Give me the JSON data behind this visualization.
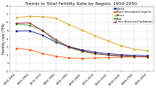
{
  "title": "Trends in Total Fertility Rate by Region, 1950-2050.",
  "ylabel": "Fertility rate (TFR)",
  "x_labels": [
    "1950-1955",
    "1960-1965",
    "1970-1975",
    "1980-1985",
    "1990-1995",
    "2000-2005",
    "2010-2015",
    "2020-2025",
    "2030-2035",
    "2040-2045",
    "2045-2050"
  ],
  "x_values": [
    0,
    1,
    2,
    3,
    4,
    5,
    6,
    7,
    8,
    9,
    10
  ],
  "ylim": [
    0,
    8
  ],
  "yticks": [
    0,
    1,
    2,
    3,
    4,
    5,
    6,
    7,
    8
  ],
  "series": [
    {
      "name": "World",
      "color": "#00008B",
      "marker": "s",
      "markersize": 1.5,
      "linewidth": 0.6,
      "values": [
        4.95,
        4.98,
        4.45,
        3.58,
        3.04,
        2.65,
        2.36,
        2.17,
        2.05,
        1.97,
        1.93
      ]
    },
    {
      "name": "More developed regions",
      "color": "#FF4500",
      "marker": "s",
      "markersize": 1.5,
      "linewidth": 0.6,
      "values": [
        2.84,
        2.67,
        2.18,
        1.85,
        1.67,
        1.57,
        1.65,
        1.72,
        1.75,
        1.78,
        1.79
      ]
    },
    {
      "name": "Africa",
      "color": "#DAA520",
      "marker": "D",
      "markersize": 1.5,
      "linewidth": 0.7,
      "values": [
        6.6,
        6.75,
        6.72,
        6.54,
        5.75,
        5.09,
        4.37,
        3.72,
        3.15,
        2.72,
        2.55
      ]
    },
    {
      "name": "Asia",
      "color": "#228B22",
      "marker": "s",
      "markersize": 1.5,
      "linewidth": 0.6,
      "values": [
        5.85,
        5.65,
        5.05,
        3.68,
        2.96,
        2.45,
        2.18,
        2.01,
        1.89,
        1.82,
        1.79
      ]
    },
    {
      "name": "Latin America/Caribbean",
      "color": "#8B0000",
      "marker": "+",
      "markersize": 2.5,
      "linewidth": 0.6,
      "values": [
        5.9,
        5.95,
        5.0,
        3.9,
        3.0,
        2.55,
        2.2,
        2.0,
        1.9,
        1.82,
        1.79
      ]
    }
  ],
  "background_color": "#ffffff",
  "title_fontsize": 4.5,
  "label_fontsize": 3.5,
  "tick_fontsize": 3.0,
  "legend_fontsize": 3.0
}
